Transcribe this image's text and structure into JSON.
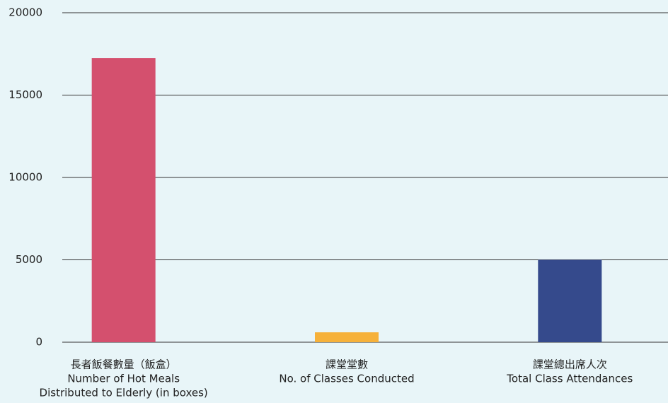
{
  "chart_data": {
    "type": "bar",
    "categories": [
      [
        "長者飯餐數量（飯盒）",
        "Number of Hot Meals",
        "Distributed to Elderly (in boxes)"
      ],
      [
        "課堂堂數",
        "No. of Classes Conducted"
      ],
      [
        "課堂總出席人次",
        "Total Class Attendances"
      ]
    ],
    "values": [
      17250,
      600,
      5000
    ],
    "colors": [
      "#d4506e",
      "#f6b13a",
      "#354a8c"
    ],
    "ylim": [
      0,
      20000
    ],
    "yticks": [
      0,
      5000,
      10000,
      15000,
      20000
    ],
    "grid": true
  }
}
